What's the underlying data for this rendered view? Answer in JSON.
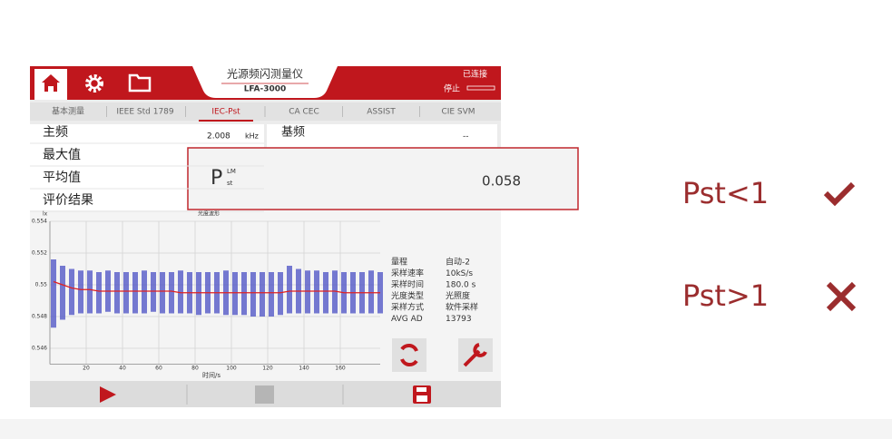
{
  "header": {
    "title": "光源频闪测量仪",
    "model": "LFA-3000",
    "status": "已连接",
    "state": "停止"
  },
  "tabs": [
    "基本测量",
    "IEEE Std 1789",
    "IEC-Pst",
    "CA CEC",
    "ASSIST",
    "CIE SVM"
  ],
  "active_tab": 2,
  "rows": [
    {
      "label": "主频",
      "value": "2.008",
      "unit": "kHz"
    },
    {
      "label": "最大值"
    },
    {
      "label": "平均值"
    },
    {
      "label": "评价结果"
    }
  ],
  "right_row": {
    "label": "基频",
    "value": "--"
  },
  "popup": {
    "symbol": "P",
    "sup": "LM",
    "sub": "st",
    "value": "0.058"
  },
  "chart_data": {
    "type": "waveform",
    "title": "光度波形",
    "ylabel": "lx",
    "xlabel": "时间/s",
    "xlim": [
      0,
      182
    ],
    "ylim": [
      0.545,
      0.554
    ],
    "xticks": [
      20,
      40,
      60,
      80,
      100,
      120,
      140,
      160
    ],
    "yticks": [
      0.546,
      0.548,
      0.55,
      0.552,
      0.554
    ],
    "grid": true,
    "band_color": "#4a4fc4",
    "mean_color": "#e02020",
    "x": [
      2,
      7,
      12,
      17,
      22,
      27,
      32,
      37,
      42,
      47,
      52,
      57,
      62,
      67,
      72,
      77,
      82,
      87,
      92,
      97,
      102,
      107,
      112,
      117,
      122,
      127,
      132,
      137,
      142,
      147,
      152,
      157,
      162,
      167,
      172,
      177,
      182
    ],
    "upper": [
      0.5516,
      0.5512,
      0.551,
      0.5509,
      0.5509,
      0.5508,
      0.5509,
      0.5508,
      0.5508,
      0.5508,
      0.5509,
      0.5508,
      0.5508,
      0.5508,
      0.5509,
      0.5508,
      0.5508,
      0.5508,
      0.5508,
      0.5509,
      0.5508,
      0.5508,
      0.5508,
      0.5508,
      0.5508,
      0.5508,
      0.5512,
      0.551,
      0.5509,
      0.5509,
      0.5508,
      0.5509,
      0.5508,
      0.5508,
      0.5508,
      0.5509,
      0.5508
    ],
    "lower": [
      0.5473,
      0.5478,
      0.5481,
      0.5482,
      0.5482,
      0.5482,
      0.5483,
      0.5482,
      0.5482,
      0.5482,
      0.5482,
      0.5483,
      0.5482,
      0.5482,
      0.5482,
      0.5482,
      0.5481,
      0.5482,
      0.5482,
      0.5481,
      0.5481,
      0.5481,
      0.548,
      0.548,
      0.548,
      0.5481,
      0.5482,
      0.5482,
      0.5482,
      0.5482,
      0.5482,
      0.5482,
      0.5482,
      0.5482,
      0.5482,
      0.5482,
      0.5482
    ],
    "mean": [
      0.5502,
      0.55,
      0.5498,
      0.5497,
      0.5497,
      0.5496,
      0.5496,
      0.5496,
      0.5496,
      0.5496,
      0.5496,
      0.5496,
      0.5496,
      0.5496,
      0.5495,
      0.5495,
      0.5495,
      0.5495,
      0.5495,
      0.5495,
      0.5495,
      0.5495,
      0.5495,
      0.5495,
      0.5495,
      0.5495,
      0.5496,
      0.5496,
      0.5496,
      0.5496,
      0.5496,
      0.5496,
      0.5495,
      0.5495,
      0.5495,
      0.5495,
      0.5495
    ]
  },
  "info": [
    {
      "label": "量程",
      "value": "自动-2"
    },
    {
      "label": "采样速率",
      "value": "10kS/s"
    },
    {
      "label": "采样时间",
      "value": "180.0 s"
    },
    {
      "label": "光度类型",
      "value": "光照度"
    },
    {
      "label": "采样方式",
      "value": "软件采样"
    },
    {
      "label": "AVG AD",
      "value": "13793"
    }
  ],
  "side": [
    "Pst<1",
    "Pst>1"
  ]
}
